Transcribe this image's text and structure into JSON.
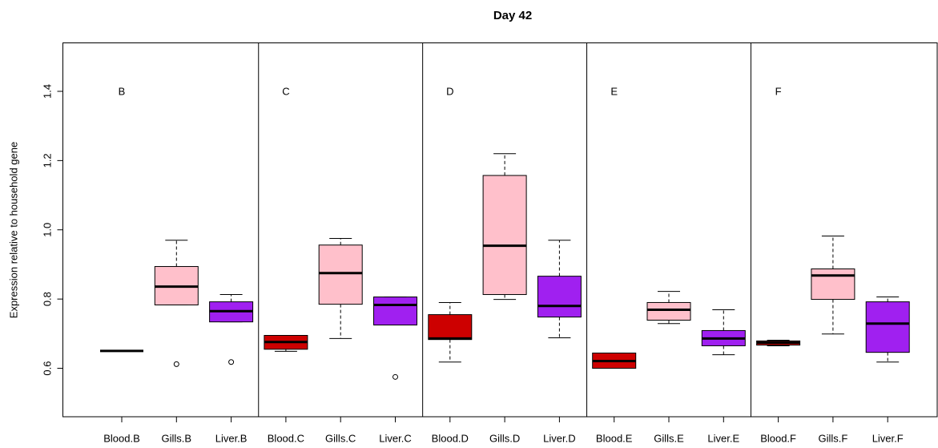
{
  "chart_data": {
    "type": "boxplot",
    "title": "Day 42",
    "y_label": "Expression relative to household gene",
    "ylim": [
      0.46,
      1.54
    ],
    "yticks": [
      0.6,
      0.8,
      {
        "value": 1,
        "label": "1.0"
      },
      1.2,
      1.4
    ],
    "colors": [
      "#CD0000",
      "#FFC0CB",
      "#A020F0"
    ],
    "groups": [
      {
        "label": "B",
        "categories": [
          "Blood.B",
          "Gills.B",
          "Liver.B"
        ],
        "boxes": [
          {
            "min": 0.65,
            "q1": 0.65,
            "median": 0.65,
            "q3": 0.65,
            "max": 0.65,
            "outliers": []
          },
          {
            "min": 0.783,
            "q1": 0.783,
            "median": 0.836,
            "q3": 0.894,
            "max": 0.97,
            "outliers": [
              0.612
            ]
          },
          {
            "min": 0.734,
            "q1": 0.734,
            "median": 0.765,
            "q3": 0.792,
            "max": 0.813,
            "outliers": [
              0.618
            ]
          }
        ]
      },
      {
        "label": "C",
        "categories": [
          "Blood.C",
          "Gills.C",
          "Liver.C"
        ],
        "boxes": [
          {
            "min": 0.649,
            "q1": 0.655,
            "median": 0.676,
            "q3": 0.695,
            "max": 0.695,
            "outliers": []
          },
          {
            "min": 0.686,
            "q1": 0.785,
            "median": 0.875,
            "q3": 0.956,
            "max": 0.975,
            "outliers": []
          },
          {
            "min": 0.725,
            "q1": 0.725,
            "median": 0.783,
            "q3": 0.806,
            "max": 0.806,
            "outliers": [
              0.575
            ]
          }
        ]
      },
      {
        "label": "D",
        "categories": [
          "Blood.D",
          "Gills.D",
          "Liver.D"
        ],
        "boxes": [
          {
            "min": 0.618,
            "q1": 0.683,
            "median": 0.686,
            "q3": 0.755,
            "max": 0.79,
            "outliers": []
          },
          {
            "min": 0.799,
            "q1": 0.813,
            "median": 0.954,
            "q3": 1.157,
            "max": 1.22,
            "outliers": []
          },
          {
            "min": 0.688,
            "q1": 0.748,
            "median": 0.78,
            "q3": 0.866,
            "max": 0.97,
            "outliers": []
          }
        ]
      },
      {
        "label": "E",
        "categories": [
          "Blood.E",
          "Gills.E",
          "Liver.E"
        ],
        "boxes": [
          {
            "min": 0.6,
            "q1": 0.6,
            "median": 0.621,
            "q3": 0.644,
            "max": 0.644,
            "outliers": []
          },
          {
            "min": 0.729,
            "q1": 0.739,
            "median": 0.769,
            "q3": 0.79,
            "max": 0.822,
            "outliers": []
          },
          {
            "min": 0.639,
            "q1": 0.665,
            "median": 0.686,
            "q3": 0.709,
            "max": 0.769,
            "outliers": []
          }
        ]
      },
      {
        "label": "F",
        "categories": [
          "Blood.F",
          "Gills.F",
          "Liver.F"
        ],
        "boxes": [
          {
            "min": 0.665,
            "q1": 0.667,
            "median": 0.674,
            "q3": 0.679,
            "max": 0.681,
            "outliers": []
          },
          {
            "min": 0.699,
            "q1": 0.799,
            "median": 0.868,
            "q3": 0.887,
            "max": 0.982,
            "outliers": []
          },
          {
            "min": 0.618,
            "q1": 0.646,
            "median": 0.729,
            "q3": 0.792,
            "max": 0.806,
            "outliers": []
          }
        ]
      }
    ]
  }
}
